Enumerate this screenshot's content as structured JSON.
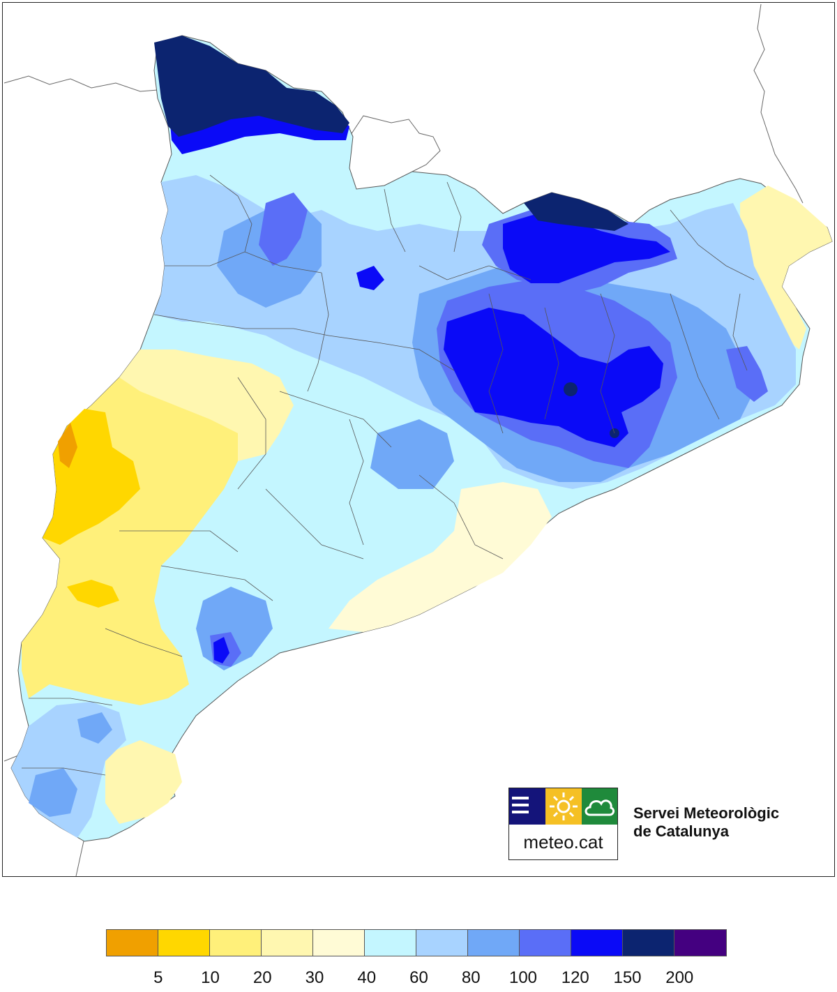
{
  "map": {
    "palette": {
      "c5": "#f0a000",
      "c10": "#ffd700",
      "c20": "#fff07a",
      "c30": "#fff7b0",
      "c40": "#fffbd6",
      "c60": "#c4f6ff",
      "c80": "#a8d3ff",
      "c100": "#70a8f7",
      "c120": "#5a6ef7",
      "c150": "#0a0af7",
      "c200": "#0c2470",
      "c250": "#440080",
      "land_outside": "#ffffff",
      "border": "#666666",
      "county_border": "#555555"
    }
  },
  "logo": {
    "text": "meteo.cat",
    "squares": [
      "lines-icon",
      "sun-icon",
      "cloud-icon"
    ]
  },
  "organization": {
    "line1": "Servei Meteorològic",
    "line2": "de Catalunya"
  },
  "legend": {
    "colors": [
      "#f0a000",
      "#ffd700",
      "#fff07a",
      "#fff7b0",
      "#fffbd6",
      "#c4f6ff",
      "#a8d3ff",
      "#70a8f7",
      "#5a6ef7",
      "#0a0af7",
      "#0c2470",
      "#440080"
    ],
    "ticks": [
      "5",
      "10",
      "20",
      "30",
      "40",
      "60",
      "80",
      "100",
      "120",
      "150",
      "200"
    ]
  }
}
